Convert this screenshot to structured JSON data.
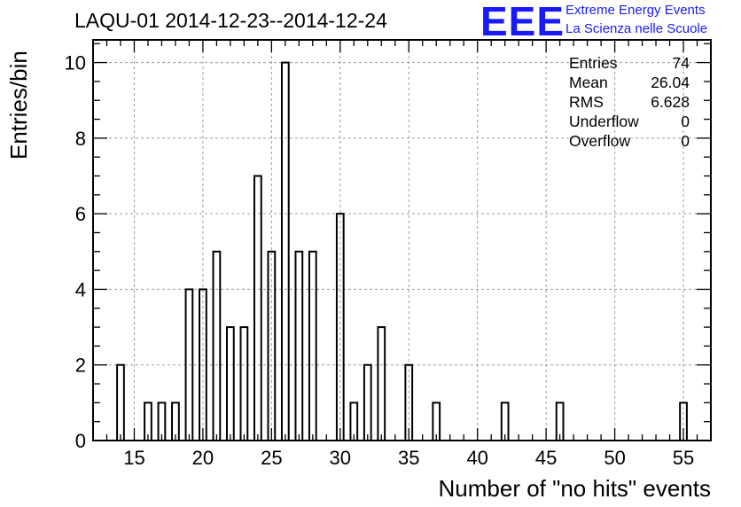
{
  "title": "LAQU-01 2014-12-23--2014-12-24",
  "logo": {
    "mark": "EEE",
    "line1": "Extreme Energy Events",
    "line2": "La Scienza nelle Scuole",
    "color": "#1a1aff"
  },
  "stats": [
    {
      "label": "Entries",
      "value": "74"
    },
    {
      "label": "Mean",
      "value": "26.04"
    },
    {
      "label": "RMS",
      "value": "6.628"
    },
    {
      "label": "Underflow",
      "value": "0"
    },
    {
      "label": "Overflow",
      "value": "0"
    }
  ],
  "chart_data": {
    "type": "bar",
    "title": "LAQU-01 2014-12-23--2014-12-24",
    "xlabel": "Number of \"no hits\" events",
    "ylabel": "Entries/bin",
    "xlim": [
      12,
      57
    ],
    "ylim": [
      0,
      10.6
    ],
    "xticks": [
      15,
      20,
      25,
      30,
      35,
      40,
      45,
      50,
      55
    ],
    "yticks": [
      0,
      2,
      4,
      6,
      8,
      10
    ],
    "grid": true,
    "bars": [
      {
        "x": 14,
        "y": 2
      },
      {
        "x": 16,
        "y": 1
      },
      {
        "x": 17,
        "y": 1
      },
      {
        "x": 18,
        "y": 1
      },
      {
        "x": 19,
        "y": 4
      },
      {
        "x": 20,
        "y": 4
      },
      {
        "x": 21,
        "y": 5
      },
      {
        "x": 22,
        "y": 3
      },
      {
        "x": 23,
        "y": 3
      },
      {
        "x": 24,
        "y": 7
      },
      {
        "x": 25,
        "y": 5
      },
      {
        "x": 26,
        "y": 10
      },
      {
        "x": 27,
        "y": 5
      },
      {
        "x": 28,
        "y": 5
      },
      {
        "x": 30,
        "y": 6
      },
      {
        "x": 31,
        "y": 1
      },
      {
        "x": 32,
        "y": 2
      },
      {
        "x": 33,
        "y": 3
      },
      {
        "x": 35,
        "y": 2
      },
      {
        "x": 37,
        "y": 1
      },
      {
        "x": 42,
        "y": 1
      },
      {
        "x": 46,
        "y": 1
      },
      {
        "x": 55,
        "y": 1
      }
    ]
  }
}
